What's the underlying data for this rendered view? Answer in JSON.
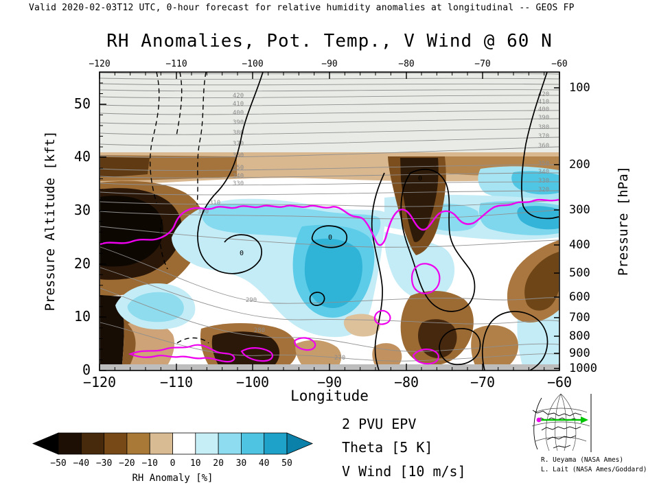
{
  "header": {
    "valid_line": "Valid 2020-02-03T12 UTC, 0-hour forecast for relative humidity anomalies at longitudinal -- GEOS FP",
    "title": "RH Anomalies, Pot. Temp., V Wind @ 60 N"
  },
  "chart_data": {
    "type": "heatmap",
    "title": "RH Anomalies, Pot. Temp., V Wind @ 60 N",
    "xlabel": "Longitude",
    "ylabel_left": "Pressure Altitude [kft]",
    "ylabel_right": "Pressure [hPa]",
    "x_range": [
      -120,
      -60
    ],
    "x_tick_labels": [
      "−120",
      "−110",
      "−100",
      "−90",
      "−80",
      "−70",
      "−60"
    ],
    "y_left_ticks": [
      0,
      10,
      20,
      30,
      40,
      50
    ],
    "y_left_tick_labels": [
      "0",
      "10",
      "20",
      "30",
      "40",
      "50"
    ],
    "y_right_ticks": [
      100,
      200,
      300,
      400,
      500,
      600,
      700,
      800,
      900,
      1000
    ],
    "y_right_tick_labels": [
      "100",
      "200",
      "300",
      "400",
      "500",
      "600",
      "700",
      "800",
      "900",
      "1000"
    ],
    "fill_field": {
      "name": "RH Anomaly [%]",
      "units": "%",
      "contour_levels": [
        -50,
        -40,
        -30,
        -20,
        -10,
        0,
        10,
        20,
        30,
        40,
        50
      ],
      "negative_colors": "browns (dry anomaly)",
      "positive_colors": "cyans (moist anomaly)"
    },
    "theta_left_labels": [
      "420",
      "410",
      "400",
      "390",
      "380",
      "370",
      "360",
      "350",
      "340",
      "330"
    ],
    "theta_right_labels": [
      "420",
      "410",
      "400",
      "390",
      "380",
      "370",
      "360",
      "350",
      "340",
      "330",
      "320"
    ],
    "theta_low_labels": [
      "310",
      "300",
      "290",
      "280",
      "270"
    ],
    "vwind_zero_labels": [
      "0",
      "0",
      "0"
    ],
    "colorbar": {
      "title": "RH Anomaly [%]",
      "title_color": "#7a1a10",
      "tick_labels": [
        "−50",
        "−40",
        "−30",
        "−20",
        "−10",
        "0",
        "10",
        "20",
        "30",
        "40",
        "50"
      ],
      "colors": [
        "#000000",
        "#1d0f04",
        "#47290c",
        "#774917",
        "#a97a37",
        "#d9bb93",
        "#ffffff",
        "#c6eef7",
        "#8edcf0",
        "#4ec4e2",
        "#1ea2ca",
        "#0b81aa"
      ]
    },
    "legend": [
      {
        "label": "2 PVU EPV",
        "color": "#ee00ee"
      },
      {
        "label": "Theta [5 K]",
        "color": "#9a9a9a"
      },
      {
        "label": "V Wind [10 m/s]",
        "color": "#000000"
      }
    ]
  },
  "credits": {
    "line1": "R. Ueyama (NASA Ames)",
    "line2": "L. Lait (NASA Ames/Goddard)"
  }
}
